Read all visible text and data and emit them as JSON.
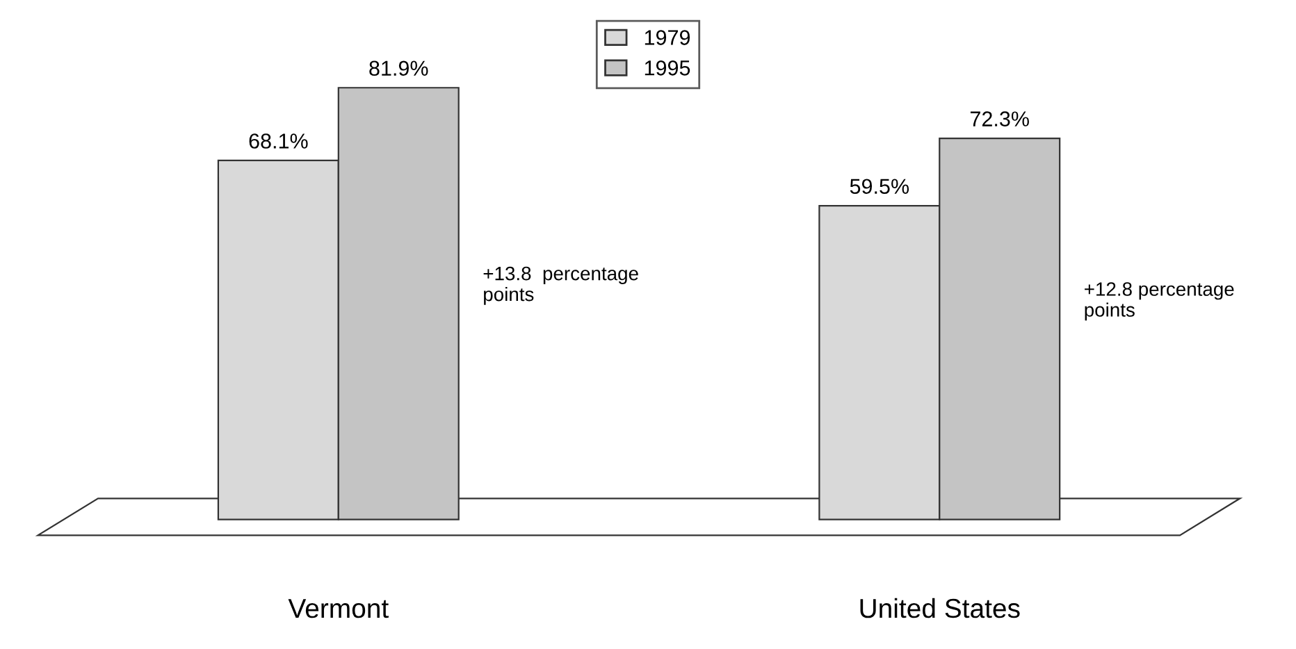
{
  "chart_data": {
    "type": "bar",
    "categories": [
      "Vermont",
      "United States"
    ],
    "series": [
      {
        "name": "1979",
        "color": "#d9d9d9",
        "values": [
          68.1,
          59.5
        ],
        "value_labels": [
          "68.1%",
          "59.5%"
        ]
      },
      {
        "name": "1995",
        "color": "#c4c4c4",
        "values": [
          81.9,
          72.3
        ],
        "value_labels": [
          "81.9%",
          "72.3%"
        ]
      }
    ],
    "annotations": [
      "+13.8  percentage\npoints",
      "+12.8 percentage\npoints"
    ],
    "legend": "top",
    "grid": false
  }
}
